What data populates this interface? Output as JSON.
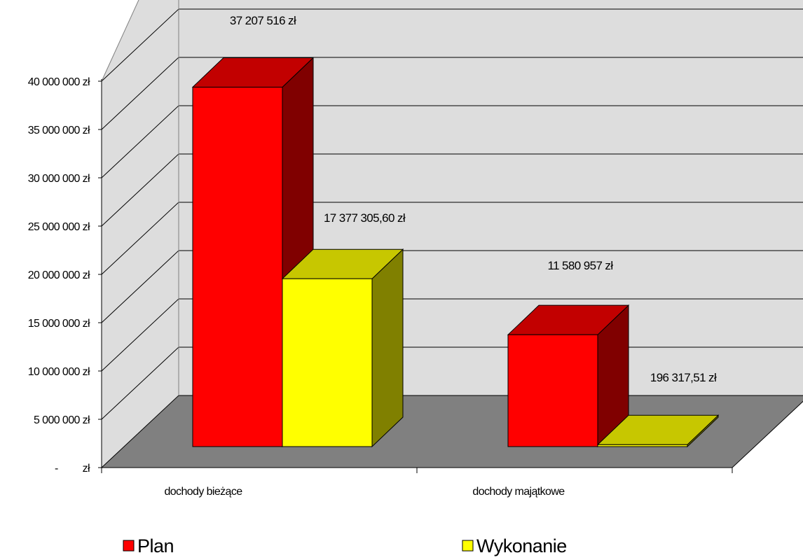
{
  "chart_data": {
    "type": "bar",
    "categories": [
      "dochody bieżące",
      "dochody majątkowe"
    ],
    "series": [
      {
        "name": "Plan",
        "color": "#ff0000",
        "values": [
          37207516,
          11580957
        ],
        "labels": [
          "37 207 516 zł",
          "11 580 957 zł"
        ]
      },
      {
        "name": "Wykonanie",
        "color": "#ffff00",
        "values": [
          17377305.6,
          196317.51
        ],
        "labels": [
          "17 377 305,60 zł",
          "196 317,51 zł"
        ]
      }
    ],
    "ylim": [
      0,
      40000000
    ],
    "y_ticks": [
      {
        "value": 0,
        "label": "-   zł"
      },
      {
        "value": 5000000,
        "label": "5 000 000 zł"
      },
      {
        "value": 10000000,
        "label": "10 000 000 zł"
      },
      {
        "value": 15000000,
        "label": "15 000 000 zł"
      },
      {
        "value": 20000000,
        "label": "20 000 000 zł"
      },
      {
        "value": 25000000,
        "label": "25 000 000 zł"
      },
      {
        "value": 30000000,
        "label": "30 000 000 zł"
      },
      {
        "value": 35000000,
        "label": "35 000 000 zł"
      },
      {
        "value": 40000000,
        "label": "40 000 000 zł"
      }
    ],
    "grid": true,
    "style": "3d-clustered-column",
    "legend_position": "bottom"
  }
}
